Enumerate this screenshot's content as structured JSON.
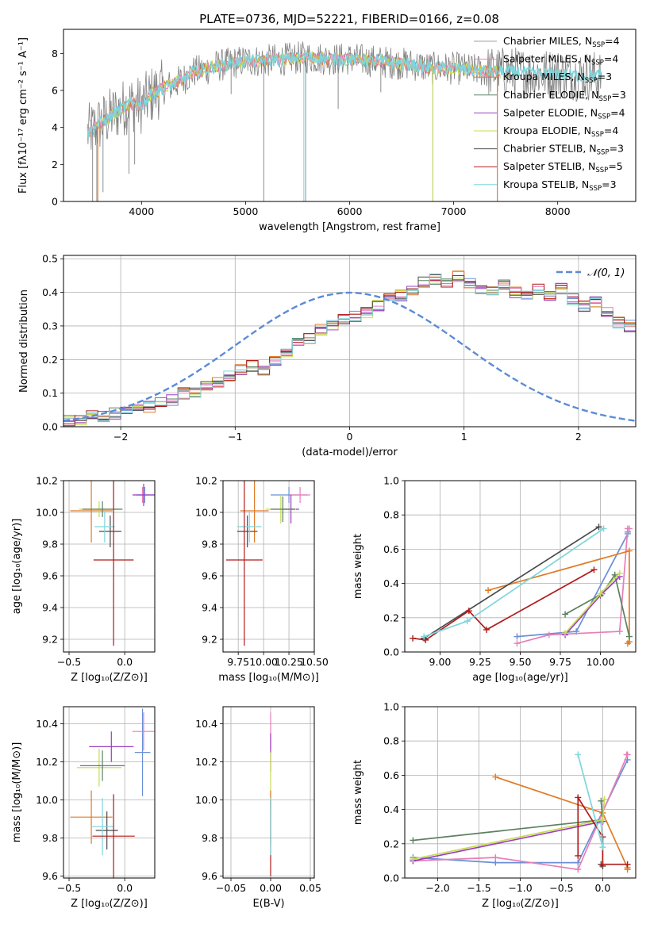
{
  "figure_title": "PLATE=0736, MJD=52221, FIBERID=0166, z=0.08",
  "colors": {
    "chabrier_miles": "#6b8fd6",
    "salpeter_miles": "#e67fb7",
    "kroupa_miles": "#e07b28",
    "chabrier_elodie": "#5b8060",
    "salpeter_elodie": "#9a3fbf",
    "kroupa_elodie": "#c8dc50",
    "chabrier_stelib": "#4a4a4a",
    "salpeter_stelib": "#b01a1a",
    "kroupa_stelib": "#7ed6dc",
    "spectrum_gray": "#808080",
    "gaussian": "#5b8bd6"
  },
  "chart_data": [
    {
      "id": "spectrum",
      "type": "line",
      "xlabel": "wavelength [Angstrom, rest frame]",
      "ylabel": "Flux [fλ10⁻¹⁷ erg cm⁻² s⁻¹ A⁻¹]",
      "xlim": [
        3250,
        8750
      ],
      "ylim": [
        0,
        9.3
      ],
      "xticks": [
        4000,
        5000,
        6000,
        7000,
        8000
      ],
      "yticks": [
        0,
        2,
        4,
        6,
        8
      ],
      "grid": false,
      "legend_position": "right",
      "legend": [
        {
          "name": "Chabrier MILES, N_SSP=4",
          "text": "Chabrier MILES, N",
          "n": "=4",
          "color_key": "spectrum_gray",
          "lw": 0.8
        },
        {
          "name": "Salpeter MILES, N_SSP=4",
          "text": "Salpeter MILES, N",
          "n": "=4",
          "color_key": "salpeter_miles",
          "lw": 1
        },
        {
          "name": "Kroupa MILES, N_SSP=3",
          "text": "Kroupa MILES, N",
          "n": "=3",
          "color_key": "kroupa_miles",
          "lw": 1
        },
        {
          "name": "Chabrier ELODIE, N_SSP=3",
          "text": "Chabrier ELODIE, N",
          "n": "=3",
          "color_key": "chabrier_elodie",
          "lw": 1
        },
        {
          "name": "Salpeter ELODIE, N_SSP=4",
          "text": "Salpeter ELODIE, N",
          "n": "=4",
          "color_key": "salpeter_elodie",
          "lw": 1
        },
        {
          "name": "Kroupa ELODIE, N_SSP=4",
          "text": "Kroupa ELODIE, N",
          "n": "=4",
          "color_key": "kroupa_elodie",
          "lw": 1
        },
        {
          "name": "Chabrier STELIB, N_SSP=3",
          "text": "Chabrier STELIB, N",
          "n": "=3",
          "color_key": "chabrier_stelib",
          "lw": 1
        },
        {
          "name": "Salpeter STELIB, N_SSP=5",
          "text": "Salpeter STELIB, N",
          "n": "=5",
          "color_key": "salpeter_stelib",
          "lw": 1
        },
        {
          "name": "Kroupa STELIB, N_SSP=3",
          "text": "Kroupa STELIB, N",
          "n": "=3",
          "color_key": "kroupa_stelib",
          "lw": 1
        }
      ],
      "continuum": [
        [
          3480,
          3.7
        ],
        [
          3600,
          4.2
        ],
        [
          3700,
          4.6
        ],
        [
          3800,
          5.0
        ],
        [
          3900,
          5.3
        ],
        [
          4000,
          5.2
        ],
        [
          4100,
          5.8
        ],
        [
          4200,
          6.1
        ],
        [
          4300,
          6.3
        ],
        [
          4400,
          6.6
        ],
        [
          4500,
          7.0
        ],
        [
          4600,
          7.1
        ],
        [
          4700,
          7.3
        ],
        [
          4800,
          7.4
        ],
        [
          4900,
          7.5
        ],
        [
          5000,
          7.6
        ],
        [
          5200,
          7.6
        ],
        [
          5400,
          7.7
        ],
        [
          5600,
          7.8
        ],
        [
          5800,
          7.7
        ],
        [
          6000,
          7.7
        ],
        [
          6200,
          7.6
        ],
        [
          6400,
          7.5
        ],
        [
          6600,
          7.4
        ],
        [
          6800,
          7.2
        ],
        [
          7000,
          7.2
        ],
        [
          7200,
          7.1
        ],
        [
          7400,
          7.0
        ],
        [
          7600,
          7.0
        ],
        [
          7800,
          6.9
        ],
        [
          8000,
          6.9
        ],
        [
          8200,
          6.8
        ],
        [
          8400,
          6.8
        ]
      ],
      "dips": [
        [
          3530,
          0
        ],
        [
          3570,
          0
        ],
        [
          3630,
          0.5
        ],
        [
          3880,
          1.5
        ],
        [
          3934,
          2.0
        ],
        [
          4102,
          4.4
        ],
        [
          4861,
          5.8
        ],
        [
          5175,
          0
        ],
        [
          5577,
          0
        ],
        [
          5890,
          5.0
        ],
        [
          6300,
          5.9
        ],
        [
          6800,
          0
        ],
        [
          7420,
          0
        ]
      ]
    },
    {
      "id": "residuals",
      "type": "area",
      "xlabel": "(data-model)/error",
      "ylabel": "Normed distribution",
      "xlim": [
        -2.5,
        2.5
      ],
      "ylim": [
        0,
        0.51
      ],
      "xticks": [
        -2,
        -1,
        0,
        1,
        2
      ],
      "yticks": [
        0.0,
        0.1,
        0.2,
        0.3,
        0.4,
        0.5
      ],
      "grid": true,
      "legend_position": "top-right",
      "legend": [
        {
          "name": "𝒩(0,1)"
        }
      ],
      "bins_start": -2.5,
      "bin_width": 0.1,
      "hist_base": [
        0.02,
        0.02,
        0.03,
        0.03,
        0.04,
        0.05,
        0.06,
        0.06,
        0.07,
        0.08,
        0.1,
        0.1,
        0.12,
        0.13,
        0.15,
        0.17,
        0.18,
        0.17,
        0.2,
        0.22,
        0.25,
        0.26,
        0.29,
        0.3,
        0.32,
        0.33,
        0.34,
        0.36,
        0.38,
        0.39,
        0.41,
        0.43,
        0.44,
        0.43,
        0.45,
        0.43,
        0.41,
        0.4,
        0.42,
        0.4,
        0.39,
        0.41,
        0.39,
        0.41,
        0.38,
        0.36,
        0.37,
        0.34,
        0.31,
        0.3,
        0.33,
        0.3,
        0.29,
        0.3,
        0.27,
        0.25,
        0.24,
        0.22,
        0.2,
        0.19,
        0.18,
        0.16,
        0.14,
        0.13,
        0.12,
        0.1,
        0.09,
        0.08,
        0.08,
        0.07,
        0.06,
        0.06,
        0.05,
        0.05,
        0.04,
        0.04,
        0.04,
        0.03,
        0.03,
        0.02
      ]
    },
    {
      "id": "age_vs_Z",
      "type": "scatter",
      "xlabel": "Z [log₁₀(Z/Z⊙)]",
      "ylabel": "age  [log₁₀(age/yr)]",
      "xlim": [
        -0.55,
        0.27
      ],
      "ylim": [
        9.12,
        10.2
      ],
      "xticks": [
        -0.5,
        0.0
      ],
      "yticks": [
        9.2,
        9.4,
        9.6,
        9.8,
        10.0,
        10.2
      ],
      "grid": true,
      "points": [
        {
          "c": "kroupa_miles",
          "x": -0.3,
          "xe": 0.19,
          "y": 10.01,
          "ye": 0.2
        },
        {
          "c": "salpeter_miles",
          "x": 0.16,
          "xe": 0.05,
          "y": 10.11,
          "ye": 0.05
        },
        {
          "c": "chabrier_miles",
          "x": 0.18,
          "xe": 0.08,
          "y": 10.11,
          "ye": 0.05
        },
        {
          "c": "salpeter_elodie",
          "x": 0.17,
          "xe": 0.1,
          "y": 10.11,
          "ye": 0.07
        },
        {
          "c": "kroupa_elodie",
          "x": -0.23,
          "xe": 0.18,
          "y": 10.02,
          "ye": 0.05
        },
        {
          "c": "chabrier_elodie",
          "x": -0.2,
          "xe": 0.18,
          "y": 10.02,
          "ye": 0.05
        },
        {
          "c": "chabrier_stelib",
          "x": -0.13,
          "xe": 0.1,
          "y": 9.88,
          "ye": 0.1
        },
        {
          "c": "kroupa_stelib",
          "x": -0.18,
          "xe": 0.09,
          "y": 9.91,
          "ye": 0.1
        },
        {
          "c": "salpeter_stelib",
          "x": -0.1,
          "xe": 0.18,
          "y": 9.7,
          "ye": 0.54
        }
      ]
    },
    {
      "id": "age_vs_mass",
      "type": "scatter",
      "xlabel": "mass [log₁₀(M/M⊙)]",
      "ylabel": "",
      "xlim": [
        9.6,
        10.5
      ],
      "ylim": [
        9.12,
        10.2
      ],
      "xticks": [
        9.75,
        10.0,
        10.25,
        10.5
      ],
      "yticks": [
        9.2,
        9.4,
        9.6,
        9.8,
        10.0,
        10.2
      ],
      "xtick_labels": [
        "9.75",
        "10.00",
        "10.25",
        "10.50"
      ],
      "grid": true,
      "points": [
        {
          "c": "kroupa_miles",
          "x": 9.91,
          "xe": 0.14,
          "y": 10.01,
          "ye": 0.2
        },
        {
          "c": "chabrier_miles",
          "x": 10.25,
          "xe": 0.18,
          "y": 10.11,
          "ye": 0.05
        },
        {
          "c": "salpeter_miles",
          "x": 10.36,
          "xe": 0.1,
          "y": 10.11,
          "ye": 0.05
        },
        {
          "c": "salpeter_elodie",
          "x": 10.27,
          "xe": 0.08,
          "y": 10.02,
          "ye": 0.09
        },
        {
          "c": "kroupa_elodie",
          "x": 10.17,
          "xe": 0.15,
          "y": 10.02,
          "ye": 0.09
        },
        {
          "c": "chabrier_elodie",
          "x": 10.19,
          "xe": 0.12,
          "y": 10.02,
          "ye": 0.08
        },
        {
          "c": "chabrier_stelib",
          "x": 9.84,
          "xe": 0.1,
          "y": 9.88,
          "ye": 0.1
        },
        {
          "c": "kroupa_stelib",
          "x": 9.86,
          "xe": 0.12,
          "y": 9.91,
          "ye": 0.1
        },
        {
          "c": "salpeter_stelib",
          "x": 9.81,
          "xe": 0.18,
          "y": 9.7,
          "ye": 0.54
        }
      ]
    },
    {
      "id": "weight_vs_age",
      "type": "line",
      "xlabel": "age  [log₁₀(age/yr)]",
      "ylabel": "mass weight",
      "xlim": [
        8.78,
        10.22
      ],
      "ylim": [
        0,
        1.0
      ],
      "xticks": [
        9.0,
        9.25,
        9.5,
        9.75,
        10.0
      ],
      "yticks": [
        0.0,
        0.2,
        0.4,
        0.6,
        0.8,
        1.0
      ],
      "xtick_labels": [
        "9.00",
        "9.25",
        "9.50",
        "9.75",
        "10.00"
      ],
      "grid": true,
      "series": [
        {
          "c": "chabrier_miles",
          "x": [
            9.48,
            9.85,
            10.17,
            10.17
          ],
          "y": [
            0.09,
            0.12,
            0.69,
            0.7
          ]
        },
        {
          "c": "salpeter_miles",
          "x": [
            9.48,
            9.68,
            10.12,
            10.17,
            10.18
          ],
          "y": [
            0.05,
            0.1,
            0.12,
            0.72,
            0.72
          ]
        },
        {
          "c": "kroupa_miles",
          "x": [
            9.3,
            10.18,
            10.18,
            10.17
          ],
          "y": [
            0.36,
            0.59,
            0.06,
            0.05
          ]
        },
        {
          "c": "chabrier_elodie",
          "x": [
            9.78,
            10.01,
            10.09,
            10.18
          ],
          "y": [
            0.22,
            0.34,
            0.45,
            0.09
          ]
        },
        {
          "c": "salpeter_elodie",
          "x": [
            9.78,
            10.0,
            10.12
          ],
          "y": [
            0.1,
            0.33,
            0.44
          ]
        },
        {
          "c": "kroupa_elodie",
          "x": [
            9.78,
            10.0,
            10.12
          ],
          "y": [
            0.11,
            0.34,
            0.46
          ]
        },
        {
          "c": "chabrier_stelib",
          "x": [
            8.9,
            9.99
          ],
          "y": [
            0.08,
            0.73
          ]
        },
        {
          "c": "salpeter_stelib",
          "x": [
            8.83,
            8.91,
            9.18,
            9.29,
            9.96
          ],
          "y": [
            0.08,
            0.07,
            0.24,
            0.13,
            0.48
          ]
        },
        {
          "c": "kroupa_stelib",
          "x": [
            8.9,
            9.17,
            10.02
          ],
          "y": [
            0.09,
            0.18,
            0.72
          ]
        }
      ]
    },
    {
      "id": "mass_vs_Z",
      "type": "scatter",
      "xlabel": "Z [log₁₀(Z/Z⊙)]",
      "ylabel": "mass [log₁₀(M/M⊙)]",
      "xlim": [
        -0.55,
        0.27
      ],
      "ylim": [
        9.59,
        10.49
      ],
      "xticks": [
        -0.5,
        0.0
      ],
      "yticks": [
        9.6,
        9.8,
        10.0,
        10.2,
        10.4
      ],
      "grid": true,
      "points": [
        {
          "c": "kroupa_miles",
          "x": -0.3,
          "xe": 0.19,
          "y": 9.91,
          "ye": 0.14
        },
        {
          "c": "chabrier_miles",
          "x": 0.16,
          "xe": 0.07,
          "y": 10.25,
          "ye": 0.23
        },
        {
          "c": "salpeter_miles",
          "x": 0.17,
          "xe": 0.1,
          "y": 10.36,
          "ye": 0.1
        },
        {
          "c": "salpeter_elodie",
          "x": -0.12,
          "xe": 0.2,
          "y": 10.28,
          "ye": 0.08
        },
        {
          "c": "kroupa_elodie",
          "x": -0.23,
          "xe": 0.2,
          "y": 10.17,
          "ye": 0.1
        },
        {
          "c": "chabrier_elodie",
          "x": -0.2,
          "xe": 0.2,
          "y": 10.18,
          "ye": 0.08
        },
        {
          "c": "chabrier_stelib",
          "x": -0.16,
          "xe": 0.1,
          "y": 9.84,
          "ye": 0.1
        },
        {
          "c": "kroupa_stelib",
          "x": -0.2,
          "xe": 0.1,
          "y": 9.86,
          "ye": 0.15
        },
        {
          "c": "salpeter_stelib",
          "x": -0.1,
          "xe": 0.19,
          "y": 9.81,
          "ye": 0.22
        }
      ]
    },
    {
      "id": "mass_vs_ebv",
      "type": "scatter",
      "xlabel": "E(B-V)",
      "ylabel": "",
      "xlim": [
        -0.06,
        0.055
      ],
      "ylim": [
        9.59,
        10.49
      ],
      "xticks": [
        -0.05,
        0.0,
        0.05
      ],
      "yticks": [
        9.6,
        9.8,
        10.0,
        10.2,
        10.4
      ],
      "xtick_labels": [
        "−0.05",
        "0.00",
        "0.05"
      ],
      "grid": true,
      "points": [
        {
          "c": "salpeter_miles",
          "x": 0,
          "xe": 0,
          "y": 10.36,
          "ye": 0.1
        },
        {
          "c": "salpeter_elodie",
          "x": 0,
          "xe": 0,
          "y": 10.25,
          "ye": 0.1
        },
        {
          "c": "kroupa_elodie",
          "x": 0,
          "xe": 0,
          "y": 10.1,
          "ye": 0.15
        },
        {
          "c": "kroupa_miles",
          "x": 0,
          "xe": 0,
          "y": 9.91,
          "ye": 0.14
        },
        {
          "c": "salpeter_stelib",
          "x": 0,
          "xe": 0,
          "y": 9.8,
          "ye": 0.2
        },
        {
          "c": "kroupa_stelib",
          "x": 0,
          "xe": 0,
          "y": 9.86,
          "ye": 0.15
        }
      ]
    },
    {
      "id": "weight_vs_Z",
      "type": "line",
      "xlabel": "Z [log₁₀(Z/Z⊙)]",
      "ylabel": "mass weight",
      "xlim": [
        -2.4,
        0.4
      ],
      "ylim": [
        0,
        1.0
      ],
      "xticks": [
        -2.0,
        -1.5,
        -1.0,
        -0.5,
        0.0
      ],
      "yticks": [
        0.0,
        0.2,
        0.4,
        0.6,
        0.8,
        1.0
      ],
      "grid": true,
      "series": [
        {
          "c": "chabrier_miles",
          "x": [
            -2.3,
            -1.3,
            -0.3,
            0.3
          ],
          "y": [
            0.12,
            0.09,
            0.09,
            0.69
          ]
        },
        {
          "c": "salpeter_miles",
          "x": [
            -2.3,
            -1.3,
            -0.3,
            0.3,
            0.29
          ],
          "y": [
            0.1,
            0.12,
            0.05,
            0.72,
            0.72
          ]
        },
        {
          "c": "kroupa_miles",
          "x": [
            -1.3,
            0.0,
            0.3,
            0.3
          ],
          "y": [
            0.59,
            0.38,
            0.06,
            0.05
          ]
        },
        {
          "c": "chabrier_elodie",
          "x": [
            -2.3,
            0.0,
            -0.02
          ],
          "y": [
            0.22,
            0.34,
            0.45
          ]
        },
        {
          "c": "salpeter_elodie",
          "x": [
            -2.3,
            0.0
          ],
          "y": [
            0.1,
            0.33
          ]
        },
        {
          "c": "kroupa_elodie",
          "x": [
            -2.3,
            0.0,
            0.02
          ],
          "y": [
            0.11,
            0.34,
            0.46
          ]
        },
        {
          "c": "chabrier_stelib",
          "x": [
            -0.02,
            0.0
          ],
          "y": [
            0.08,
            0.07
          ]
        },
        {
          "c": "salpeter_stelib",
          "x": [
            -0.3,
            -0.3,
            0.0,
            0.0,
            0.3
          ],
          "y": [
            0.13,
            0.47,
            0.24,
            0.08,
            0.08
          ]
        },
        {
          "c": "kroupa_stelib",
          "x": [
            -0.3,
            0.0,
            -0.02
          ],
          "y": [
            0.72,
            0.18,
            0.32
          ]
        }
      ]
    }
  ]
}
